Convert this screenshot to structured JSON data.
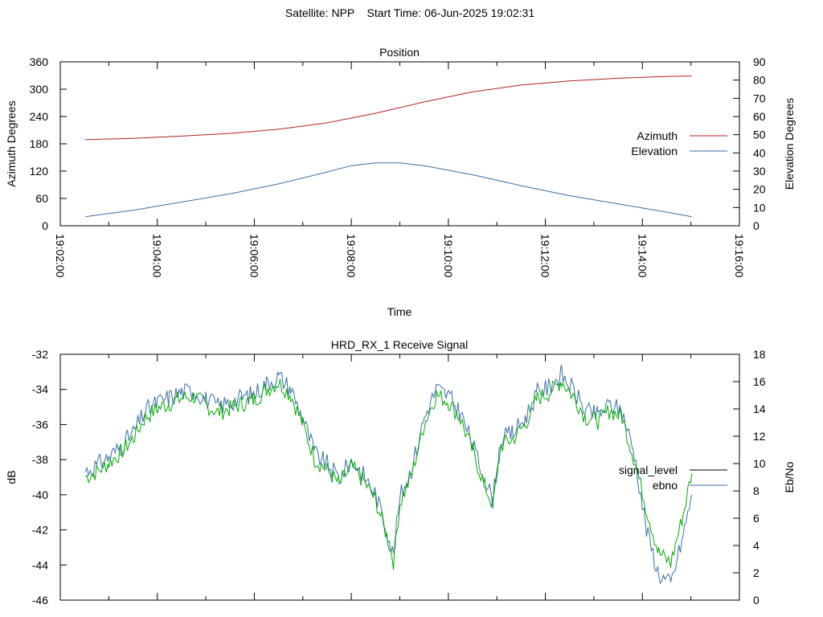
{
  "page_title": "Satellite: NPP    Start Time: 06-Jun-2025 19:02:31",
  "colors": {
    "azimuth": "#b22222",
    "elevation": "#3a6ea5",
    "signal_level": "#000000",
    "ebno": "#3a6ea5",
    "signal_trace": "#00aa00",
    "frame": "#000000"
  },
  "chart_data": [
    {
      "type": "line",
      "title": "Position",
      "xlabel": "Time",
      "ylabel": "Azimuth Degrees",
      "y2label": "Elevation Degrees",
      "xlim": [
        "19:02:00",
        "19:16:00"
      ],
      "x_ticks": [
        "19:02:00",
        "19:04:00",
        "19:06:00",
        "19:08:00",
        "19:10:00",
        "19:12:00",
        "19:14:00",
        "19:16:00"
      ],
      "ylim": [
        0,
        360
      ],
      "y_ticks": [
        "0",
        "60",
        "120",
        "180",
        "240",
        "300",
        "360"
      ],
      "y2lim": [
        0,
        90
      ],
      "y2_ticks": [
        "0",
        "10",
        "20",
        "30",
        "40",
        "50",
        "60",
        "70",
        "80",
        "90"
      ],
      "legend_position": "right",
      "series": [
        {
          "name": "Azimuth",
          "axis": "y",
          "x": [
            "19:02:31",
            "19:03:30",
            "19:04:30",
            "19:05:30",
            "19:06:30",
            "19:07:30",
            "19:08:30",
            "19:09:30",
            "19:10:30",
            "19:11:30",
            "19:12:30",
            "19:13:30",
            "19:14:30",
            "19:15:01"
          ],
          "values": [
            189,
            192,
            197,
            203,
            212,
            226,
            247,
            272,
            294,
            309,
            318,
            324,
            328,
            329
          ]
        },
        {
          "name": "Elevation",
          "axis": "y2",
          "x": [
            "19:02:31",
            "19:03:30",
            "19:04:30",
            "19:05:30",
            "19:06:30",
            "19:07:30",
            "19:08:00",
            "19:08:30",
            "19:09:00",
            "19:09:30",
            "19:10:30",
            "19:11:30",
            "19:12:30",
            "19:13:30",
            "19:14:30",
            "19:15:01"
          ],
          "values": [
            5,
            8.5,
            13,
            17.5,
            23,
            29.5,
            33,
            34.5,
            34.5,
            33,
            28,
            22,
            16.5,
            12,
            7.5,
            5
          ]
        }
      ]
    },
    {
      "type": "line",
      "title": "HRD_RX_1 Receive Signal",
      "ylabel": "dB",
      "y2label": "Eb/No",
      "xlim": [
        "19:02:00",
        "19:16:00"
      ],
      "ylim": [
        -46,
        -32
      ],
      "y_ticks": [
        "-32",
        "-34",
        "-36",
        "-38",
        "-40",
        "-42",
        "-44",
        "-46"
      ],
      "y2lim": [
        0,
        18
      ],
      "y2_ticks": [
        "0",
        "2",
        "4",
        "6",
        "8",
        "10",
        "12",
        "14",
        "16",
        "18"
      ],
      "legend_position": "right",
      "series": [
        {
          "name": "signal_level",
          "axis": "y",
          "x": [],
          "values": []
        },
        {
          "name": "ebno",
          "axis": "y2",
          "x": [],
          "values": []
        }
      ],
      "trace_db": {
        "x": [
          "19:02:31",
          "19:02:45",
          "19:03:00",
          "19:03:15",
          "19:03:30",
          "19:03:45",
          "19:04:00",
          "19:04:15",
          "19:04:30",
          "19:04:45",
          "19:05:00",
          "19:05:15",
          "19:05:30",
          "19:05:45",
          "19:06:00",
          "19:06:15",
          "19:06:30",
          "19:06:45",
          "19:07:00",
          "19:07:15",
          "19:07:30",
          "19:07:45",
          "19:08:00",
          "19:08:15",
          "19:08:30",
          "19:08:45",
          "19:08:52",
          "19:09:00",
          "19:09:15",
          "19:09:30",
          "19:09:45",
          "19:10:00",
          "19:10:15",
          "19:10:30",
          "19:10:45",
          "19:10:55",
          "19:11:05",
          "19:11:20",
          "19:11:35",
          "19:11:50",
          "19:12:05",
          "19:12:20",
          "19:12:35",
          "19:12:50",
          "19:13:05",
          "19:13:20",
          "19:13:35",
          "19:13:50",
          "19:14:05",
          "19:14:20",
          "19:14:35",
          "19:14:50",
          "19:15:01"
        ],
        "values": [
          -39,
          -38.7,
          -38.2,
          -37.6,
          -36.8,
          -35.6,
          -35.1,
          -34.8,
          -34.5,
          -34.4,
          -34.9,
          -35.3,
          -35.1,
          -34.8,
          -34.6,
          -34.0,
          -33.6,
          -34.3,
          -36.0,
          -38.0,
          -38.6,
          -39.4,
          -38.4,
          -39.2,
          -40.3,
          -42.5,
          -43.8,
          -40.5,
          -38.8,
          -36.0,
          -34.3,
          -34.7,
          -35.7,
          -37.5,
          -39.5,
          -40.6,
          -37.2,
          -36.8,
          -36.0,
          -34.5,
          -34.2,
          -33.5,
          -34.4,
          -35.6,
          -35.8,
          -35.2,
          -35.6,
          -38.0,
          -40.8,
          -43.3,
          -43.9,
          -41.2,
          -38.8
        ]
      }
    }
  ]
}
